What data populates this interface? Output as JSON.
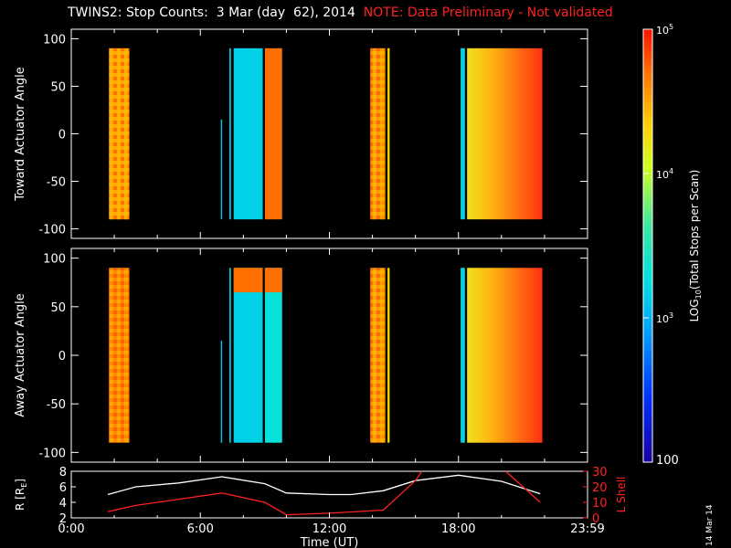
{
  "title": "TWINS2: Stop Counts:  3 Mar (day  62), 2014",
  "note": "NOTE: Data Preliminary - Not validated",
  "date_stamp": "14 Mar 14",
  "colors": {
    "note": "#ff2020",
    "ephem_r": "#ffffff",
    "ephem_l": "#ff2020"
  },
  "colorbar": {
    "label": "LOG10(Total Stops per Scan)",
    "label_parts": [
      "LOG",
      "10",
      "(Total Stops per Scan)"
    ],
    "ticks": [
      {
        "base": "10",
        "exp": "5",
        "value": 100000
      },
      {
        "base": "10",
        "exp": "4",
        "value": 10000
      },
      {
        "base": "10",
        "exp": "3",
        "value": 1000
      }
    ],
    "min_label": "100",
    "range": [
      100,
      100000
    ],
    "scale": "log"
  },
  "chart_data": [
    {
      "type": "heatmap",
      "ylabel": "Toward Actuator Angle",
      "ylim": [
        -110,
        110
      ],
      "yticks": [
        "100",
        "50",
        "0",
        "-50",
        "-100"
      ],
      "ytick_values": [
        100,
        50,
        0,
        -50,
        -100
      ],
      "xlim": [
        0,
        24
      ],
      "angle_range": [
        -90,
        90
      ],
      "blocks": [
        {
          "t0": 1.75,
          "t1": 2.7,
          "value": 30000,
          "texture": "high"
        },
        {
          "t0": 6.95,
          "t1": 7.0,
          "value": 1200,
          "ymax": 15
        },
        {
          "t0": 7.35,
          "t1": 7.42,
          "value": 1500,
          "ymax": 90
        },
        {
          "t0": 7.55,
          "t1": 8.9,
          "value": 1500
        },
        {
          "t0": 9.0,
          "t1": 9.8,
          "value": 50000
        },
        {
          "t0": 13.9,
          "t1": 14.6,
          "value": 35000,
          "texture": "high"
        },
        {
          "t0": 14.7,
          "t1": 14.8,
          "value": 20000
        },
        {
          "t0": 18.1,
          "t1": 18.3,
          "value": 1500
        },
        {
          "t0": 18.4,
          "t1": 21.9,
          "value": 20000,
          "gradient": "yellow-red"
        }
      ]
    },
    {
      "type": "heatmap",
      "ylabel": "Away Actuator Angle",
      "ylim": [
        -110,
        110
      ],
      "yticks": [
        "100",
        "50",
        "0",
        "-50",
        "-100"
      ],
      "ytick_values": [
        100,
        50,
        0,
        -50,
        -100
      ],
      "xlim": [
        0,
        24
      ],
      "angle_range": [
        -90,
        90
      ],
      "blocks": [
        {
          "t0": 1.75,
          "t1": 2.7,
          "value": 40000,
          "texture": "high"
        },
        {
          "t0": 6.95,
          "t1": 7.0,
          "value": 1200,
          "ymax": 15
        },
        {
          "t0": 7.35,
          "t1": 7.42,
          "value": 1500,
          "ymax": 90
        },
        {
          "t0": 7.55,
          "t1": 8.9,
          "value": 1500,
          "cap": 50000
        },
        {
          "t0": 9.0,
          "t1": 9.8,
          "value": 2000,
          "cap": 50000
        },
        {
          "t0": 13.9,
          "t1": 14.6,
          "value": 35000,
          "texture": "high"
        },
        {
          "t0": 14.7,
          "t1": 14.8,
          "value": 20000
        },
        {
          "t0": 18.1,
          "t1": 18.3,
          "value": 1500
        },
        {
          "t0": 18.4,
          "t1": 21.9,
          "value": 25000,
          "gradient": "yellow-red"
        }
      ]
    },
    {
      "type": "line",
      "ylabel_left": "R [RE]",
      "ylabel_left_parts": [
        "R [R",
        "E",
        "]"
      ],
      "ylabel_right": "L Shell",
      "xlabel": "Time (UT)",
      "xlim": [
        0,
        24
      ],
      "xticks": [
        "0:00",
        "6:00",
        "12:00",
        "18:00",
        "23:59"
      ],
      "xtick_values": [
        0,
        6,
        12,
        18,
        24
      ],
      "ylim_left": [
        2,
        8
      ],
      "ylim_right": [
        0,
        30
      ],
      "yticks_left": [
        "8",
        "6",
        "4",
        "2"
      ],
      "yticks_left_values": [
        8,
        6,
        4,
        2
      ],
      "yticks_right": [
        "30",
        "20",
        "10",
        "0"
      ],
      "yticks_right_values": [
        30,
        20,
        10,
        0
      ],
      "series": [
        {
          "axis": "left",
          "color": "#ffffff",
          "x": [
            1.7,
            3,
            5,
            7,
            9,
            10,
            12,
            13,
            14.5,
            16,
            18,
            20,
            21.8
          ],
          "y": [
            5.0,
            6.0,
            6.5,
            7.3,
            6.4,
            5.2,
            5.0,
            5.0,
            5.5,
            6.8,
            7.5,
            6.7,
            5.1
          ]
        },
        {
          "axis": "right",
          "color": "#ff2020",
          "segments": [
            {
              "x": [
                1.7,
                3,
                5,
                7,
                9,
                10,
                12,
                14.5,
                16,
                16.3
              ],
              "y": [
                4,
                8,
                12,
                16,
                10,
                2,
                3,
                5,
                24,
                30
              ]
            },
            {
              "x": [
                20.2,
                21.8
              ],
              "y": [
                30,
                10
              ]
            }
          ]
        }
      ]
    }
  ]
}
